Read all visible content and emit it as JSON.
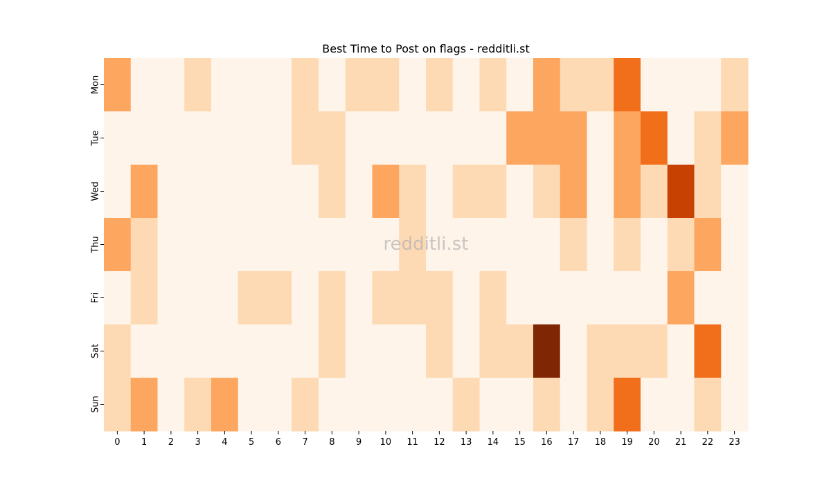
{
  "chart_data": {
    "type": "heatmap",
    "title": "Best Time to Post on flags - redditli.st",
    "xlabel": "",
    "ylabel": "",
    "x": [
      "0",
      "1",
      "2",
      "3",
      "4",
      "5",
      "6",
      "7",
      "8",
      "9",
      "10",
      "11",
      "12",
      "13",
      "14",
      "15",
      "16",
      "17",
      "18",
      "19",
      "20",
      "21",
      "22",
      "23"
    ],
    "y": [
      "Mon",
      "Tue",
      "Wed",
      "Thu",
      "Fri",
      "Sat",
      "Sun"
    ],
    "values": [
      [
        2,
        0,
        0,
        1,
        0,
        0,
        0,
        1,
        0,
        1,
        1,
        0,
        1,
        0,
        1,
        0,
        2,
        1,
        1,
        3,
        0,
        0,
        0,
        1
      ],
      [
        0,
        0,
        0,
        0,
        0,
        0,
        0,
        1,
        1,
        0,
        0,
        0,
        0,
        0,
        0,
        2,
        2,
        2,
        0,
        2,
        3,
        0,
        1,
        2
      ],
      [
        0,
        2,
        0,
        0,
        0,
        0,
        0,
        0,
        1,
        0,
        2,
        1,
        0,
        1,
        1,
        0,
        1,
        2,
        0,
        2,
        1,
        4,
        1,
        0
      ],
      [
        2,
        1,
        0,
        0,
        0,
        0,
        0,
        0,
        0,
        0,
        0,
        1,
        0,
        0,
        0,
        0,
        0,
        1,
        0,
        1,
        0,
        1,
        2,
        0
      ],
      [
        0,
        1,
        0,
        0,
        0,
        1,
        1,
        0,
        1,
        0,
        1,
        1,
        1,
        0,
        1,
        0,
        0,
        0,
        0,
        0,
        0,
        2,
        0,
        0
      ],
      [
        1,
        0,
        0,
        0,
        0,
        0,
        0,
        0,
        1,
        0,
        0,
        0,
        1,
        0,
        1,
        1,
        5,
        0,
        1,
        1,
        1,
        0,
        3,
        0
      ],
      [
        1,
        2,
        0,
        1,
        2,
        0,
        0,
        1,
        0,
        0,
        0,
        0,
        0,
        1,
        0,
        0,
        1,
        0,
        1,
        3,
        0,
        0,
        1,
        0
      ]
    ],
    "color_scale": [
      "#fef4e9",
      "#fdd9b4",
      "#fda660",
      "#f16f1b",
      "#c64102",
      "#7f2704"
    ],
    "colorbar": false,
    "grid": false
  },
  "watermark": "redditli.st"
}
